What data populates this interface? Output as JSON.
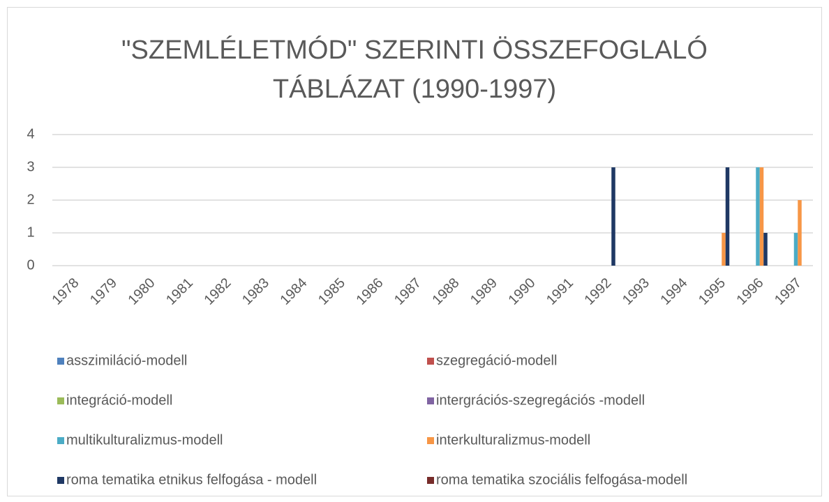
{
  "chart_data": {
    "type": "bar",
    "title": "\"SZEMLÉLETMÓD\" SZERINTI ÖSSZEFOGLALÓ TÁBLÁZAT (1990-1997)",
    "categories": [
      "1978",
      "1979",
      "1980",
      "1981",
      "1982",
      "1983",
      "1984",
      "1985",
      "1986",
      "1987",
      "1988",
      "1989",
      "1990",
      "1991",
      "1992",
      "1993",
      "1994",
      "1995",
      "1996",
      "1997"
    ],
    "series": [
      {
        "name": "asszimiláció-modell",
        "color": "#4f81bd",
        "values": [
          0,
          0,
          0,
          0,
          0,
          0,
          0,
          0,
          0,
          0,
          0,
          0,
          0,
          0,
          0,
          0,
          0,
          0,
          0,
          0
        ]
      },
      {
        "name": "szegregáció-modell",
        "color": "#c0504d",
        "values": [
          0,
          0,
          0,
          0,
          0,
          0,
          0,
          0,
          0,
          0,
          0,
          0,
          0,
          0,
          0,
          0,
          0,
          0,
          0,
          0
        ]
      },
      {
        "name": "integráció-modell",
        "color": "#9bbb59",
        "values": [
          0,
          0,
          0,
          0,
          0,
          0,
          0,
          0,
          0,
          0,
          0,
          0,
          0,
          0,
          0,
          0,
          0,
          0,
          0,
          0
        ]
      },
      {
        "name": "intergrációs-szegregációs -modell",
        "color": "#8064a2",
        "values": [
          0,
          0,
          0,
          0,
          0,
          0,
          0,
          0,
          0,
          0,
          0,
          0,
          0,
          0,
          0,
          0,
          0,
          0,
          0,
          0
        ]
      },
      {
        "name": "multikulturalizmus-modell",
        "color": "#4bacc6",
        "values": [
          0,
          0,
          0,
          0,
          0,
          0,
          0,
          0,
          0,
          0,
          0,
          0,
          0,
          0,
          0,
          0,
          0,
          0,
          3,
          1
        ]
      },
      {
        "name": "interkulturalizmus-modell",
        "color": "#f79646",
        "values": [
          0,
          0,
          0,
          0,
          0,
          0,
          0,
          0,
          0,
          0,
          0,
          0,
          0,
          0,
          0,
          0,
          0,
          1,
          3,
          2
        ]
      },
      {
        "name": "roma tematika etnikus felfogása - modell",
        "color": "#1f3864",
        "values": [
          0,
          0,
          0,
          0,
          0,
          0,
          0,
          0,
          0,
          0,
          0,
          0,
          0,
          0,
          3,
          0,
          0,
          3,
          1,
          0
        ]
      },
      {
        "name": "roma tematika szociális felfogása-modell",
        "color": "#772c2a",
        "values": [
          0,
          0,
          0,
          0,
          0,
          0,
          0,
          0,
          0,
          0,
          0,
          0,
          0,
          0,
          0,
          0,
          0,
          0,
          0,
          0
        ]
      }
    ],
    "ylim": [
      0,
      4
    ],
    "yticks": [
      0,
      1,
      2,
      3,
      4
    ],
    "grid": true
  }
}
